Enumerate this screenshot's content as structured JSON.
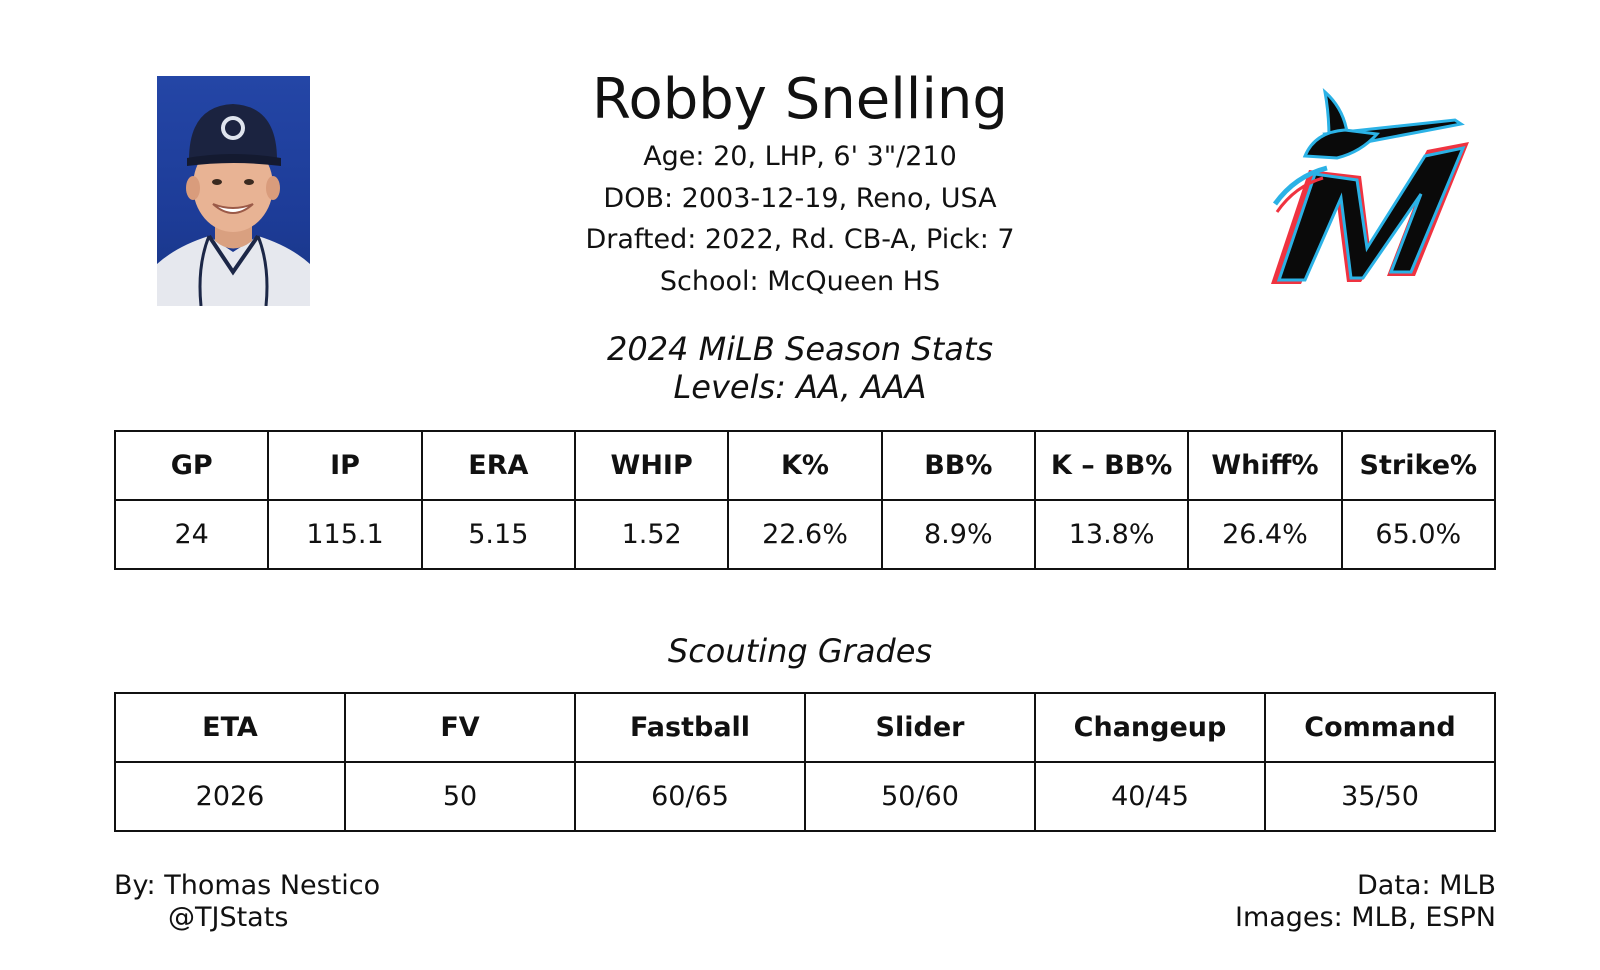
{
  "player": {
    "name": "Robby Snelling",
    "bio_lines": [
      "Age: 20, LHP, 6' 3\"/210",
      "DOB: 2003-12-19, Reno, USA",
      "Drafted: 2022, Rd. CB-A, Pick: 7",
      "School: McQueen HS"
    ]
  },
  "season": {
    "title": "2024 MiLB Season Stats",
    "subtitle": "Levels: AA, AAA",
    "headers": [
      "GP",
      "IP",
      "ERA",
      "WHIP",
      "K%",
      "BB%",
      "K – BB%",
      "Whiff%",
      "Strike%"
    ],
    "values": [
      "24",
      "115.1",
      "5.15",
      "1.52",
      "22.6%",
      "8.9%",
      "13.8%",
      "26.4%",
      "65.0%"
    ]
  },
  "scouting": {
    "title": "Scouting Grades",
    "headers": [
      "ETA",
      "FV",
      "Fastball",
      "Slider",
      "Changeup",
      "Command"
    ],
    "values": [
      "2026",
      "50",
      "60/65",
      "50/60",
      "40/45",
      "35/50"
    ]
  },
  "footer": {
    "by": "By: Thomas Nestico",
    "handle": "@TJStats",
    "data": "Data: MLB",
    "images": "Images: MLB, ESPN"
  },
  "colors": {
    "photo_bg": "#1f3f9e",
    "logo_black": "#0a0a0a",
    "logo_blue": "#2bb2e6",
    "logo_red": "#ef3340"
  },
  "icons": {
    "photo": "player-headshot",
    "logo": "miami-marlins-logo"
  }
}
